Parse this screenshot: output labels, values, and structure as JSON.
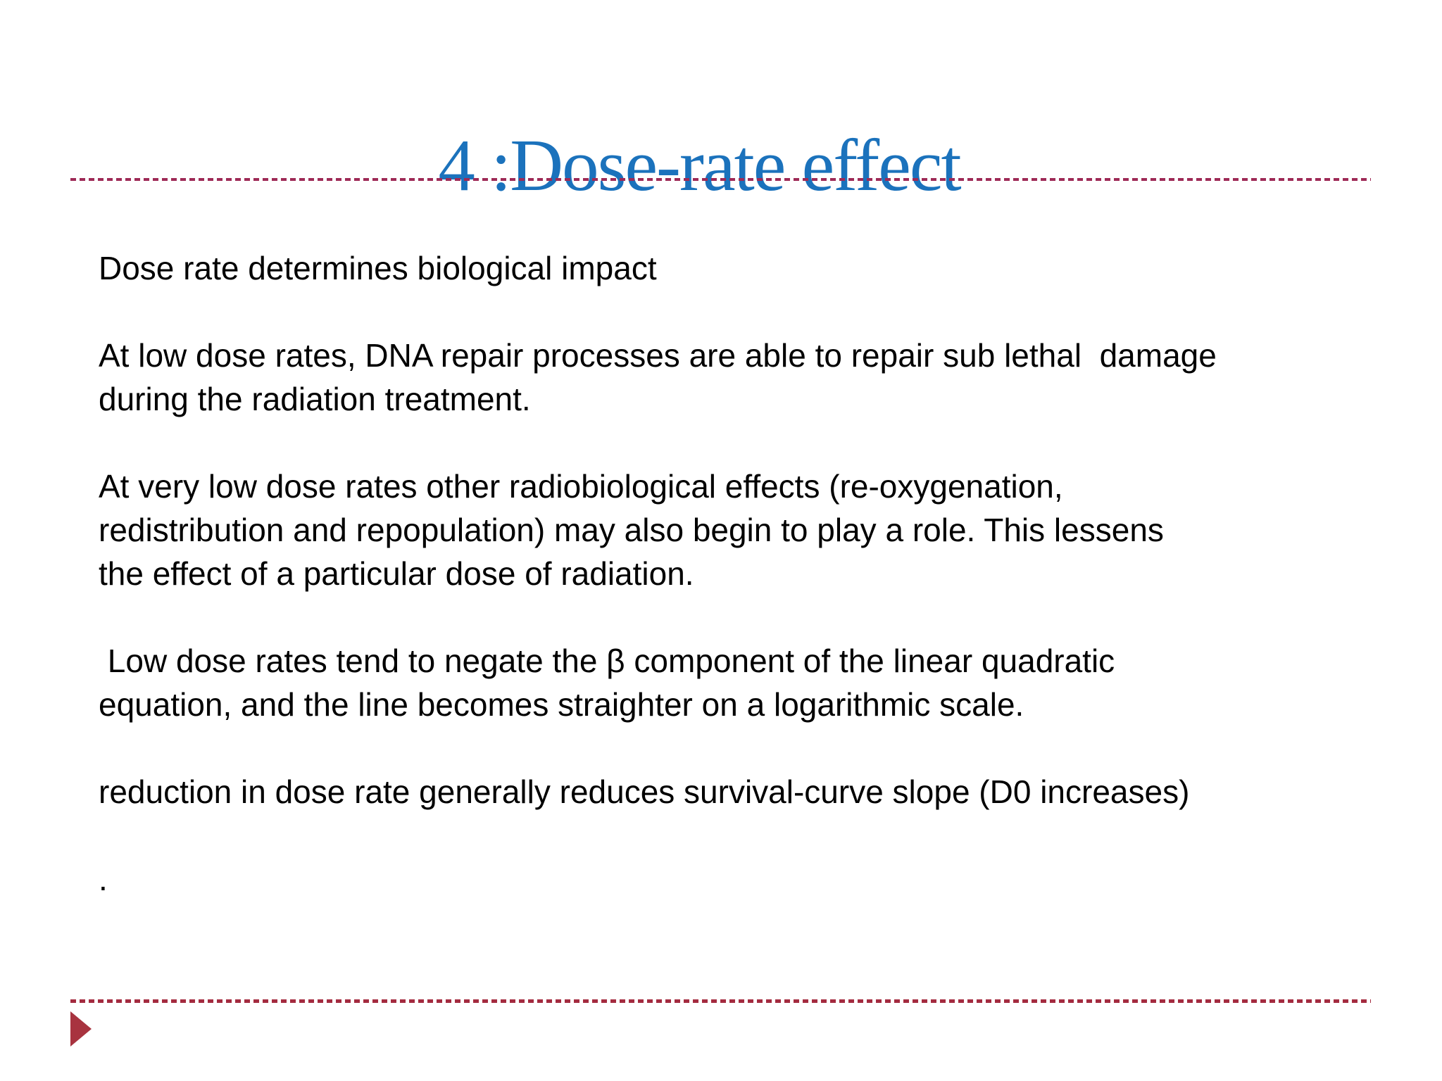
{
  "slide": {
    "title": "4 :Dose-rate effect",
    "paragraphs": [
      "Dose rate determines biological impact",
      "At low dose rates, DNA repair processes are able to repair sub lethal  damage\nduring the radiation treatment.",
      "At very low dose rates other radiobiological effects (re-oxygenation,\nredistribution and repopulation) may also begin to play a role. This lessens\nthe effect of a particular dose of radiation.",
      " Low dose rates tend to negate the β component of the linear quadratic\nequation, and the line becomes straighter on a logarithmic scale.",
      "reduction in dose rate generally reduces survival-curve slope (D0 increases)",
      "."
    ],
    "decorations": {
      "top_separator": "dashed-line",
      "bottom_separator": "dashed-line",
      "corner_marker": "right-pointing-triangle"
    },
    "colors": {
      "title_blue": "#1b72bc",
      "top_dash_maroon": "#9e2a56",
      "bottom_dash_maroon": "#a42b40",
      "triangle_red": "#a8333f",
      "body_text": "#000000",
      "background": "#ffffff"
    }
  }
}
